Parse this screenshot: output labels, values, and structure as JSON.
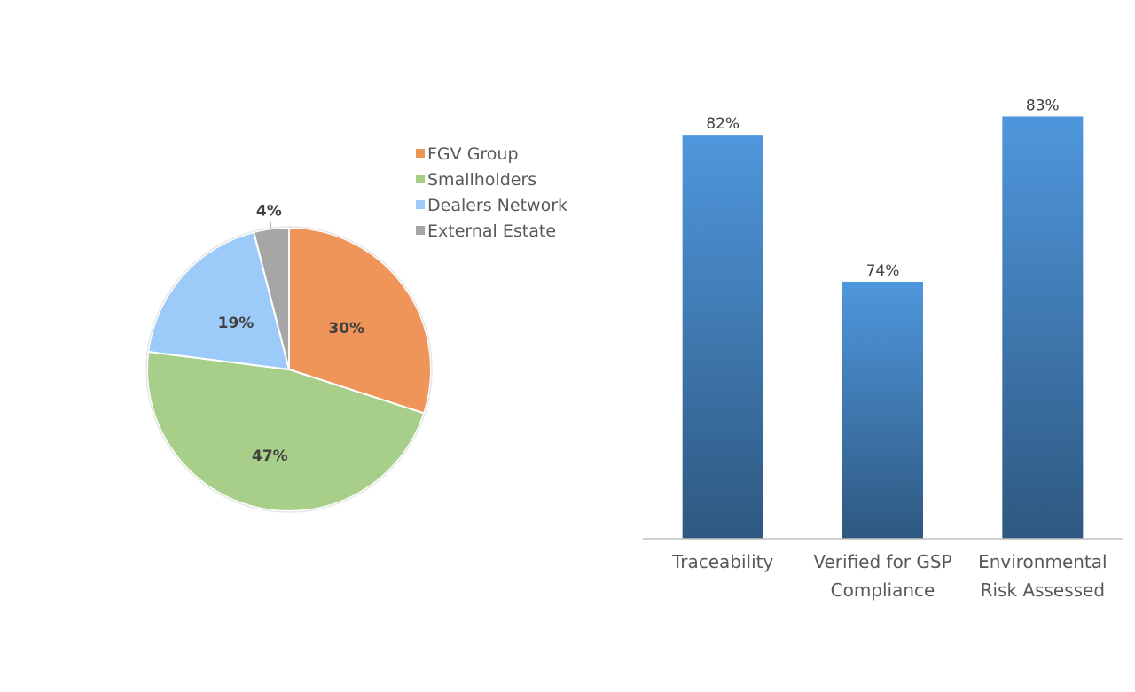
{
  "chart_data": [
    {
      "type": "pie",
      "title": "",
      "slices": [
        {
          "label": "FGV Group",
          "value": 30,
          "display": "30%",
          "color": "#F0955A"
        },
        {
          "label": "Smallholders",
          "value": 47,
          "display": "47%",
          "color": "#A8CF8A"
        },
        {
          "label": "Dealers Network",
          "value": 19,
          "display": "19%",
          "color": "#9CCBFA"
        },
        {
          "label": "External Estate",
          "value": 4,
          "display": "4%",
          "color": "#A6A6A6"
        }
      ],
      "legend_position": "top-right",
      "start_angle": "12 o'clock, clockwise"
    },
    {
      "type": "bar",
      "title": "",
      "categories": [
        [
          "Traceability"
        ],
        [
          "Verified for GSP",
          "Compliance"
        ],
        [
          "Environmental",
          "Risk Assessed"
        ]
      ],
      "values": [
        82,
        74,
        83
      ],
      "value_labels": [
        "82%",
        "74%",
        "83%"
      ],
      "ylim": [
        60,
        85
      ],
      "grid": false,
      "bar_color_top": "#4F97DD",
      "bar_color_bottom": "#2E5880"
    }
  ]
}
